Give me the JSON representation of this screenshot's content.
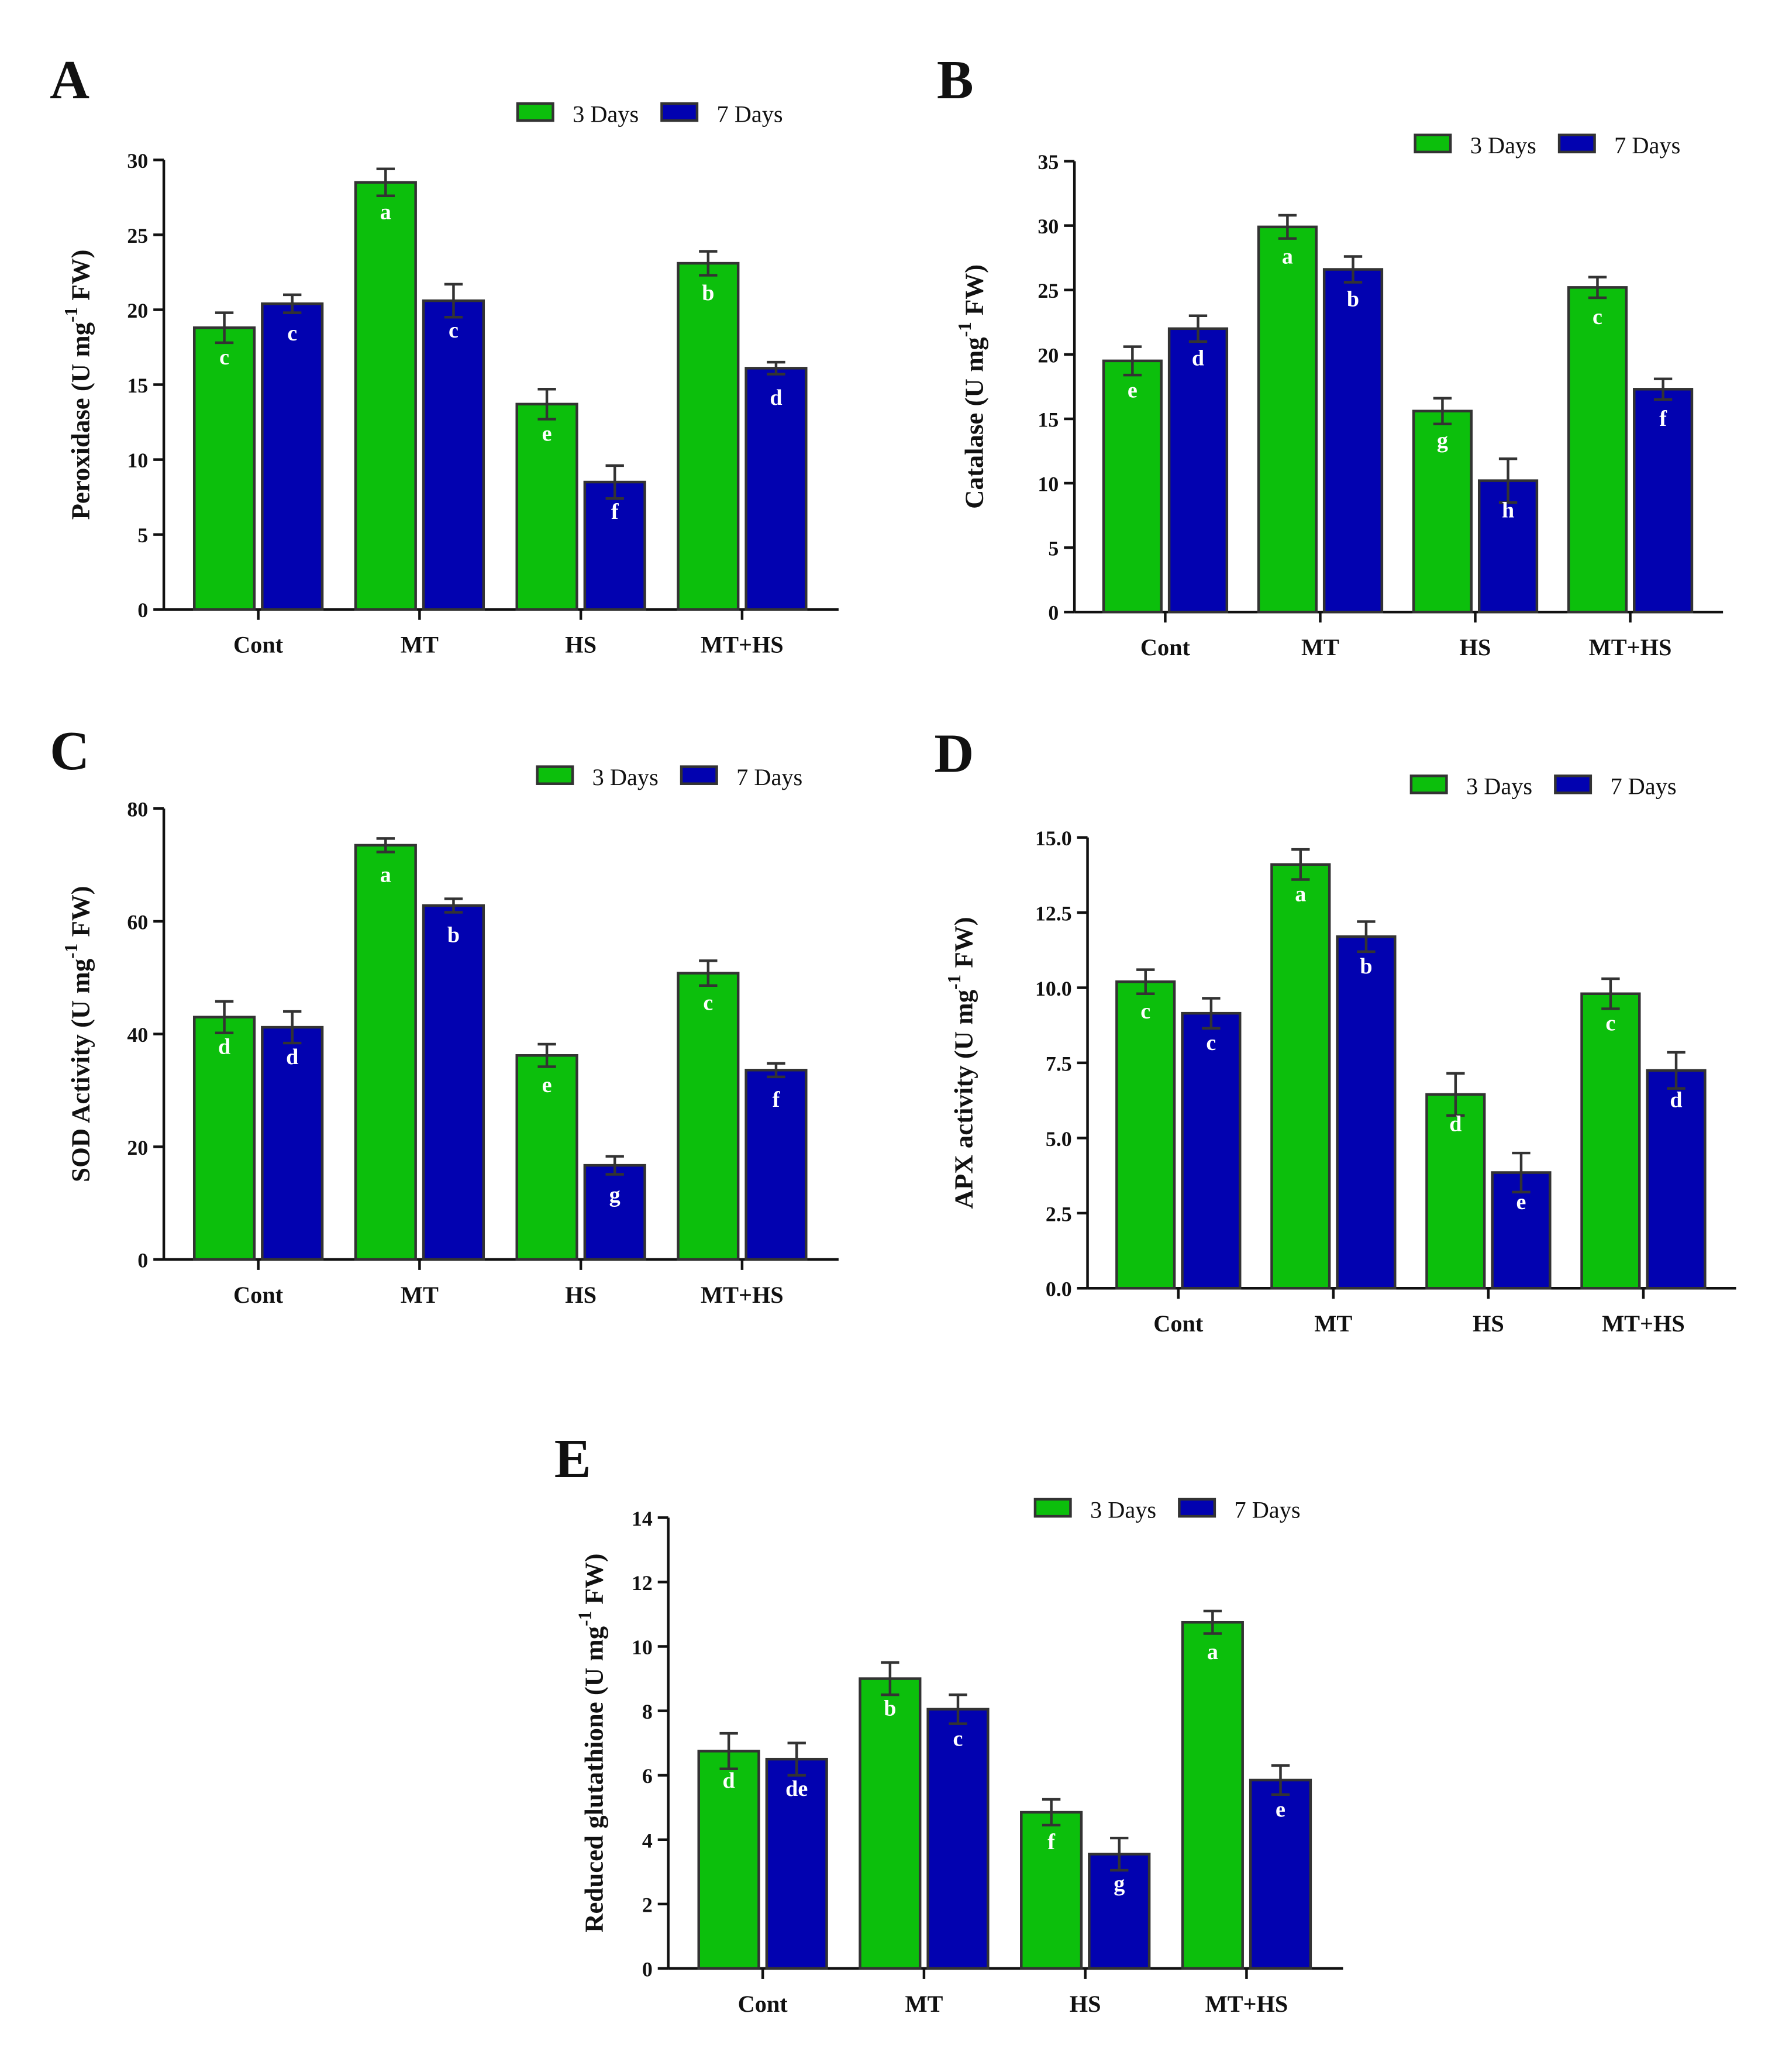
{
  "colors": {
    "series_3d": "#0cbf0c",
    "series_7d": "#0202b0",
    "outline": "#333333"
  },
  "chart_data": [
    {
      "panel": "A",
      "type": "bar",
      "categories": [
        "Cont",
        "MT",
        "HS",
        "MT+HS"
      ],
      "ylabel": {
        "main": "Peroxidase (U mg",
        "sup": "-1",
        "end": " FW)"
      },
      "ylim": [
        0,
        30
      ],
      "yticks": [
        "0",
        "5",
        "10",
        "15",
        "20",
        "25",
        "30"
      ],
      "series": [
        {
          "name": "3 Days",
          "values": [
            18.8,
            28.5,
            13.7,
            23.1
          ],
          "errors": [
            1.0,
            0.9,
            1.0,
            0.8
          ],
          "letters": [
            "c",
            "a",
            "e",
            "b"
          ]
        },
        {
          "name": "7 Days",
          "values": [
            20.4,
            20.6,
            8.5,
            16.1
          ],
          "errors": [
            0.6,
            1.1,
            1.1,
            0.4
          ],
          "letters": [
            "c",
            "c",
            "f",
            "d"
          ]
        }
      ]
    },
    {
      "panel": "B",
      "type": "bar",
      "categories": [
        "Cont",
        "MT",
        "HS",
        "MT+HS"
      ],
      "ylabel": {
        "main": "Catalase (U mg",
        "sup": "-1",
        "end": " FW)"
      },
      "ylim": [
        0,
        35
      ],
      "yticks": [
        "0",
        "5",
        "10",
        "15",
        "20",
        "25",
        "30",
        "35"
      ],
      "series": [
        {
          "name": "3 Days",
          "values": [
            19.5,
            29.9,
            15.6,
            25.2
          ],
          "errors": [
            1.1,
            0.9,
            1.0,
            0.8
          ],
          "letters": [
            "e",
            "a",
            "g",
            "c"
          ]
        },
        {
          "name": "7 Days",
          "values": [
            22.0,
            26.6,
            10.2,
            17.3
          ],
          "errors": [
            1.0,
            1.0,
            1.7,
            0.8
          ],
          "letters": [
            "d",
            "b",
            "h",
            "f"
          ]
        }
      ]
    },
    {
      "panel": "C",
      "type": "bar",
      "categories": [
        "Cont",
        "MT",
        "HS",
        "MT+HS"
      ],
      "ylabel": {
        "main": "SOD Activity (U mg",
        "sup": "-1",
        "end": " FW)"
      },
      "ylim": [
        0,
        80
      ],
      "yticks": [
        "0",
        "20",
        "40",
        "60",
        "80"
      ],
      "series": [
        {
          "name": "3 Days",
          "values": [
            43.0,
            73.5,
            36.2,
            50.8
          ],
          "errors": [
            2.8,
            1.2,
            2.0,
            2.2
          ],
          "letters": [
            "d",
            "a",
            "e",
            "c"
          ]
        },
        {
          "name": "7 Days",
          "values": [
            41.2,
            62.8,
            16.7,
            33.6
          ],
          "errors": [
            2.8,
            1.2,
            1.6,
            1.2
          ],
          "letters": [
            "d",
            "b",
            "g",
            "f"
          ]
        }
      ]
    },
    {
      "panel": "D",
      "type": "bar",
      "categories": [
        "Cont",
        "MT",
        "HS",
        "MT+HS"
      ],
      "ylabel": {
        "main": "APX activity (U mg",
        "sup": "-1",
        "end": " FW)"
      },
      "ylim": [
        0,
        15
      ],
      "yticks": [
        "0.0",
        "2.5",
        "5.0",
        "7.5",
        "10.0",
        "12.5",
        "15.0"
      ],
      "series": [
        {
          "name": "3 Days",
          "values": [
            10.2,
            14.1,
            6.45,
            9.8
          ],
          "errors": [
            0.4,
            0.5,
            0.7,
            0.5
          ],
          "letters": [
            "c",
            "a",
            "d",
            "c"
          ]
        },
        {
          "name": "7 Days",
          "values": [
            9.15,
            11.7,
            3.85,
            7.25
          ],
          "errors": [
            0.5,
            0.5,
            0.65,
            0.6
          ],
          "letters": [
            "c",
            "b",
            "e",
            "d"
          ]
        }
      ]
    },
    {
      "panel": "E",
      "type": "bar",
      "categories": [
        "Cont",
        "MT",
        "HS",
        "MT+HS"
      ],
      "ylabel": {
        "main": "Reduced glutathione (U mg",
        "sup": "-1",
        "end": " FW)"
      },
      "ylim": [
        0,
        14
      ],
      "yticks": [
        "0",
        "2",
        "4",
        "6",
        "8",
        "10",
        "12",
        "14"
      ],
      "series": [
        {
          "name": "3 Days",
          "values": [
            6.75,
            9.0,
            4.85,
            10.75
          ],
          "errors": [
            0.55,
            0.5,
            0.4,
            0.35
          ],
          "letters": [
            "d",
            "b",
            "f",
            "a"
          ]
        },
        {
          "name": "7 Days",
          "values": [
            6.5,
            8.05,
            3.55,
            5.85
          ],
          "errors": [
            0.5,
            0.45,
            0.5,
            0.45
          ],
          "letters": [
            "de",
            "c",
            "g",
            "e"
          ]
        }
      ]
    }
  ]
}
